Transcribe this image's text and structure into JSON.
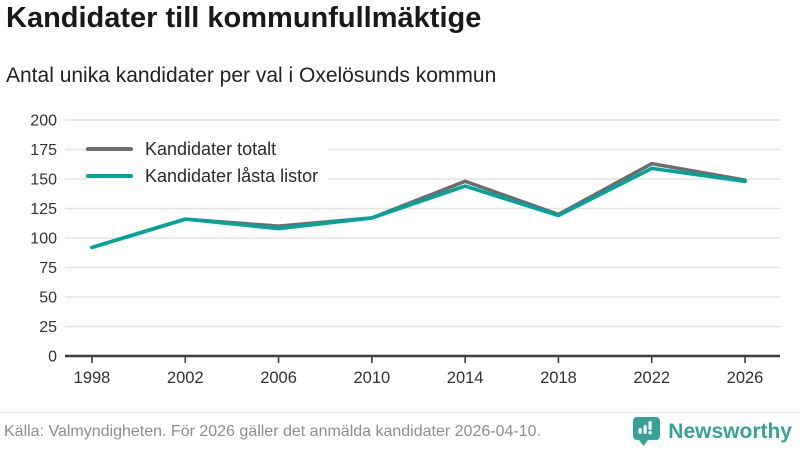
{
  "header": {
    "title": "Kandidater till kommunfullmäktige",
    "subtitle": "Antal unika kandidater per val i Oxelösunds kommun"
  },
  "chart_data": {
    "type": "line",
    "x": [
      1998,
      2002,
      2006,
      2010,
      2014,
      2018,
      2022,
      2026
    ],
    "series": [
      {
        "name": "Kandidater totalt",
        "color": "#6d6d6d",
        "values": [
          92,
          116,
          110,
          117,
          148,
          120,
          163,
          149
        ]
      },
      {
        "name": "Kandidater låsta listor",
        "color": "#00a59b",
        "values": [
          92,
          116,
          108,
          117,
          144,
          119,
          159,
          148
        ]
      }
    ],
    "ylim": [
      0,
      200
    ],
    "yticks": [
      0,
      25,
      50,
      75,
      100,
      125,
      150,
      175,
      200
    ],
    "xtick_labels": [
      "1998",
      "2002",
      "2006",
      "2010",
      "2014",
      "2018",
      "2022",
      "2026"
    ],
    "grid": true,
    "legend_position": "top-left",
    "gridline_color": "#e3e3e3",
    "axis_color": "#3d3d3d",
    "tick_label_color": "#333333"
  },
  "footer": {
    "source": "Källa: Valmyndigheten. För 2026 gäller det anmälda kandidater 2026-04-10.",
    "brand_name": "Newsworthy",
    "brand_color": "#38a296"
  }
}
